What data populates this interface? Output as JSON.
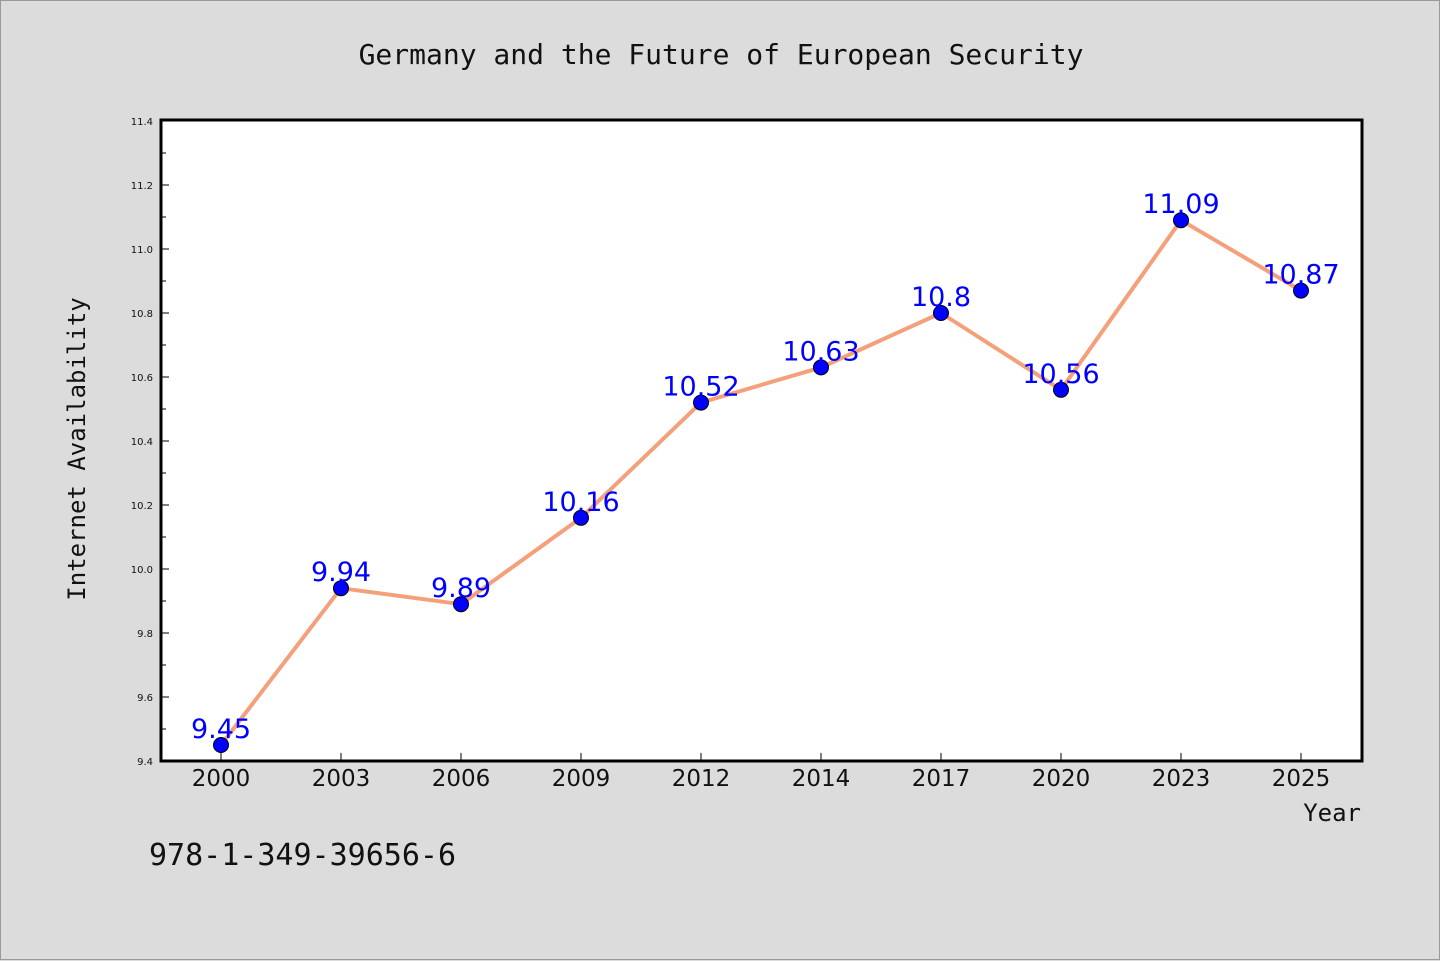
{
  "chart_data": {
    "type": "line",
    "title": "Germany and the Future of European Security",
    "xlabel": "Year",
    "ylabel": "Internet Availability",
    "categories": [
      "2000",
      "2003",
      "2006",
      "2009",
      "2012",
      "2014",
      "2017",
      "2020",
      "2023",
      "2025"
    ],
    "series": [
      {
        "values": [
          9.45,
          9.94,
          9.89,
          10.16,
          10.52,
          10.63,
          10.8,
          10.56,
          11.09,
          10.87
        ],
        "line_color": "#f4a07a",
        "marker_color": "#0000ff"
      }
    ],
    "data_labels": [
      "9.45",
      "9.94",
      "9.89",
      "10.16",
      "10.52",
      "10.63",
      "10.8",
      "10.56",
      "11.09",
      "10.87"
    ],
    "ylim": [
      9.4,
      11.4
    ],
    "y_ticks": [
      "9.4",
      "9.6",
      "9.8",
      "10.0",
      "10.2",
      "10.4",
      "10.6",
      "10.8",
      "11.0",
      "11.2",
      "11.4"
    ],
    "grid": false,
    "legend": "none"
  },
  "footer": {
    "code": "978-1-349-39656-6"
  }
}
